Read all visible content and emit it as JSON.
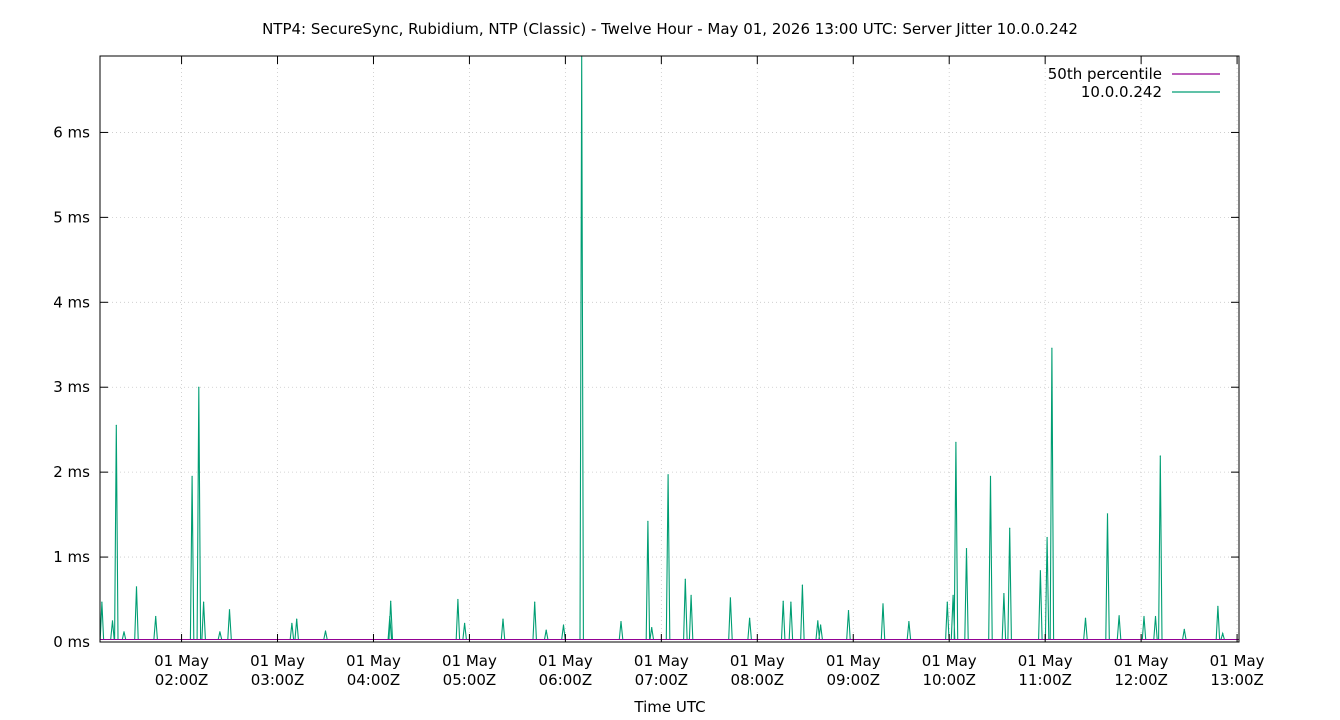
{
  "chart_data": {
    "type": "line",
    "title": "NTP4: SecureSync, Rubidium, NTP (Classic) - Twelve Hour - May 01, 2026 13:00 UTC: Server Jitter 10.0.0.242",
    "xlabel": "Time UTC",
    "ylabel": "",
    "x_ticks": [
      {
        "day": "01 May",
        "time": "02:00Z",
        "hour": 2
      },
      {
        "day": "01 May",
        "time": "03:00Z",
        "hour": 3
      },
      {
        "day": "01 May",
        "time": "04:00Z",
        "hour": 4
      },
      {
        "day": "01 May",
        "time": "05:00Z",
        "hour": 5
      },
      {
        "day": "01 May",
        "time": "06:00Z",
        "hour": 6
      },
      {
        "day": "01 May",
        "time": "07:00Z",
        "hour": 7
      },
      {
        "day": "01 May",
        "time": "08:00Z",
        "hour": 8
      },
      {
        "day": "01 May",
        "time": "09:00Z",
        "hour": 9
      },
      {
        "day": "01 May",
        "time": "10:00Z",
        "hour": 10
      },
      {
        "day": "01 May",
        "time": "11:00Z",
        "hour": 11
      },
      {
        "day": "01 May",
        "time": "12:00Z",
        "hour": 12
      },
      {
        "day": "01 May",
        "time": "13:00Z",
        "hour": 13
      }
    ],
    "y_ticks": [
      {
        "label": "0 ms",
        "value": 0
      },
      {
        "label": "1 ms",
        "value": 1
      },
      {
        "label": "2 ms",
        "value": 2
      },
      {
        "label": "3 ms",
        "value": 3
      },
      {
        "label": "4 ms",
        "value": 4
      },
      {
        "label": "5 ms",
        "value": 5
      },
      {
        "label": "6 ms",
        "value": 6
      }
    ],
    "xlim": [
      1.15,
      13.02
    ],
    "ylim": [
      0,
      6.9
    ],
    "grid": true,
    "legend_position": "top-right",
    "series": [
      {
        "name": "50th percentile",
        "color": "#940094",
        "points": [
          [
            1.15,
            0.03
          ],
          [
            13.02,
            0.03
          ]
        ]
      },
      {
        "name": "10.0.0.242",
        "color": "#009e73",
        "baseline": 0.03,
        "spikes": [
          [
            1.17,
            0.47
          ],
          [
            1.28,
            0.25
          ],
          [
            1.32,
            2.55
          ],
          [
            1.4,
            0.12
          ],
          [
            1.53,
            0.65
          ],
          [
            1.73,
            0.3
          ],
          [
            2.11,
            1.95
          ],
          [
            2.18,
            3.0
          ],
          [
            2.23,
            0.47
          ],
          [
            2.4,
            0.12
          ],
          [
            2.5,
            0.38
          ],
          [
            3.15,
            0.22
          ],
          [
            3.2,
            0.27
          ],
          [
            3.5,
            0.13
          ],
          [
            4.17,
            0.3
          ],
          [
            4.18,
            0.48
          ],
          [
            4.88,
            0.5
          ],
          [
            4.95,
            0.22
          ],
          [
            5.35,
            0.27
          ],
          [
            5.68,
            0.47
          ],
          [
            5.8,
            0.14
          ],
          [
            5.98,
            0.2
          ],
          [
            6.17,
            6.9
          ],
          [
            6.58,
            0.24
          ],
          [
            6.86,
            1.42
          ],
          [
            6.9,
            0.17
          ],
          [
            7.07,
            1.97
          ],
          [
            7.25,
            0.74
          ],
          [
            7.31,
            0.55
          ],
          [
            7.72,
            0.52
          ],
          [
            7.92,
            0.28
          ],
          [
            8.27,
            0.48
          ],
          [
            8.35,
            0.47
          ],
          [
            8.47,
            0.67
          ],
          [
            8.63,
            0.25
          ],
          [
            8.66,
            0.2
          ],
          [
            8.95,
            0.37
          ],
          [
            9.31,
            0.45
          ],
          [
            9.58,
            0.24
          ],
          [
            9.98,
            0.47
          ],
          [
            10.04,
            0.55
          ],
          [
            10.07,
            2.35
          ],
          [
            10.18,
            1.1
          ],
          [
            10.43,
            1.95
          ],
          [
            10.57,
            0.57
          ],
          [
            10.63,
            1.34
          ],
          [
            10.95,
            0.84
          ],
          [
            11.02,
            1.23
          ],
          [
            11.07,
            3.46
          ],
          [
            11.42,
            0.28
          ],
          [
            11.65,
            1.51
          ],
          [
            11.77,
            0.31
          ],
          [
            12.03,
            0.3
          ],
          [
            12.15,
            0.3
          ],
          [
            12.2,
            2.19
          ],
          [
            12.45,
            0.15
          ],
          [
            12.8,
            0.42
          ],
          [
            12.85,
            0.1
          ]
        ]
      }
    ]
  }
}
